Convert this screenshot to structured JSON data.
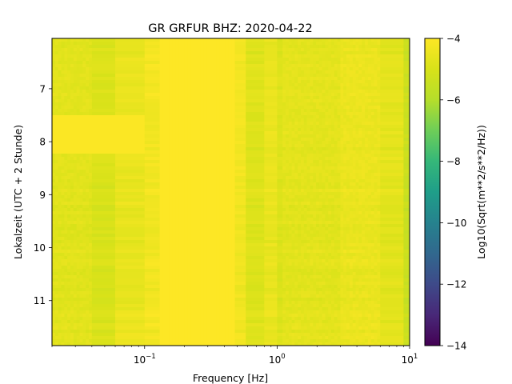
{
  "chart_data": {
    "type": "heatmap",
    "title": "GR GRFUR  BHZ: 2020-04-22",
    "xlabel": "Frequency [Hz]",
    "ylabel": "Lokalzeit (UTC + 2 Stunde)",
    "x_scale": "log",
    "xlim": [
      0.02,
      10
    ],
    "ylim": [
      11.85,
      6.05
    ],
    "y_inverted": true,
    "x_ticks": [
      {
        "value": 0.1,
        "base": "10",
        "exp": "−1"
      },
      {
        "value": 1,
        "base": "10",
        "exp": "0"
      },
      {
        "value": 10,
        "base": "10",
        "exp": "1"
      }
    ],
    "y_ticks": [
      {
        "value": 7,
        "label": "7"
      },
      {
        "value": 8,
        "label": "8"
      },
      {
        "value": 9,
        "label": "9"
      },
      {
        "value": 10,
        "label": "10"
      },
      {
        "value": 11,
        "label": "11"
      }
    ],
    "colorbar": {
      "label": "Log10(Sqrt(m**2/s**2/Hz))",
      "colormap": "viridis",
      "vmin": -14,
      "vmax": -4,
      "ticks": [
        {
          "value": -4,
          "label": "−4"
        },
        {
          "value": -6,
          "label": "−6"
        },
        {
          "value": -8,
          "label": "−8"
        },
        {
          "value": -10,
          "label": "−10"
        },
        {
          "value": -12,
          "label": "−12"
        },
        {
          "value": -14,
          "label": "−14"
        }
      ]
    },
    "frequency_bands": [
      {
        "f_from": 0.02,
        "f_to": 0.04,
        "level": -4.75
      },
      {
        "f_from": 0.04,
        "f_to": 0.06,
        "level": -4.95
      },
      {
        "f_from": 0.06,
        "f_to": 0.1,
        "level": -4.55
      },
      {
        "f_from": 0.1,
        "f_to": 0.13,
        "level": -4.3
      },
      {
        "f_from": 0.13,
        "f_to": 0.48,
        "level": -4.0
      },
      {
        "f_from": 0.48,
        "f_to": 0.58,
        "level": -4.3
      },
      {
        "f_from": 0.58,
        "f_to": 0.8,
        "level": -4.85
      },
      {
        "f_from": 0.8,
        "f_to": 1.0,
        "level": -4.55
      },
      {
        "f_from": 1.0,
        "f_to": 1.1,
        "level": -4.9
      },
      {
        "f_from": 1.1,
        "f_to": 3.0,
        "level": -4.7
      },
      {
        "f_from": 3.0,
        "f_to": 6.0,
        "level": -4.5
      },
      {
        "f_from": 6.0,
        "f_to": 9.0,
        "level": -4.7
      },
      {
        "f_from": 9.0,
        "f_to": 10.0,
        "level": -5.4
      }
    ],
    "time_features": [
      {
        "t_from": 7.5,
        "t_to": 8.2,
        "f_from": 0.02,
        "f_to": 0.1,
        "level": -4.05
      }
    ]
  }
}
